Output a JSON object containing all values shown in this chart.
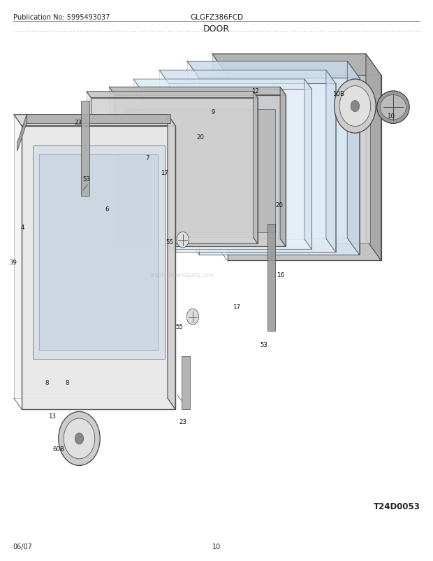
{
  "title": "DOOR",
  "pub_no": "Publication No: 5995493037",
  "model": "GLGFZ386FCD",
  "date": "06/07",
  "page": "10",
  "diagram_id": "T24D0053",
  "bg_color": "#ffffff",
  "text_color": "#222222"
}
